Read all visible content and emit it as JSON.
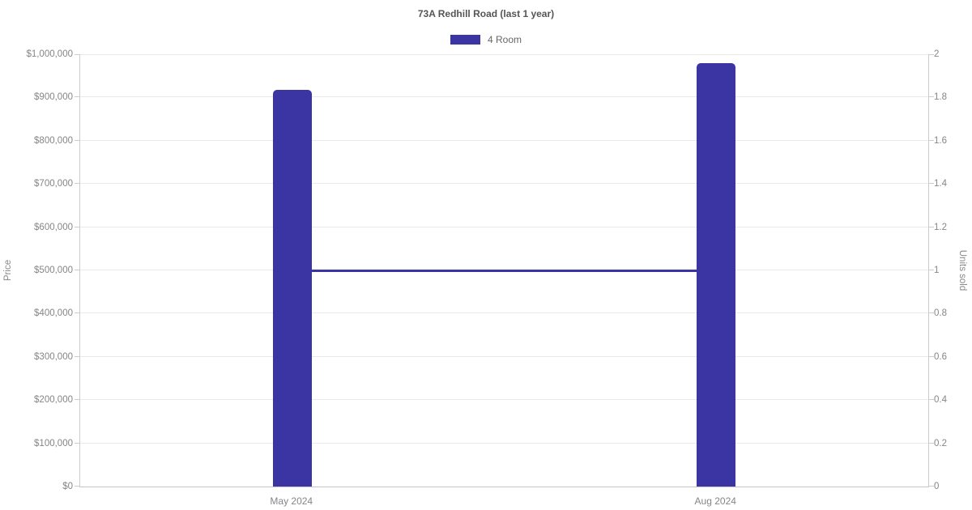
{
  "chart": {
    "title": "73A Redhill Road (last 1 year)",
    "legend": {
      "items": [
        {
          "label": "4 Room",
          "color": "#3b35a3"
        }
      ]
    }
  },
  "chart_data": {
    "type": "bar",
    "title": "73A Redhill Road (last 1 year)",
    "categories": [
      "May 2024",
      "Aug 2024"
    ],
    "series": [
      {
        "name": "4 Room",
        "type": "bar",
        "axis": "left",
        "values": [
          918000,
          980000
        ],
        "color": "#3b35a3"
      },
      {
        "name": "Units sold",
        "type": "line",
        "axis": "right",
        "values": [
          1,
          1
        ],
        "color": "#3b35a3"
      }
    ],
    "left_axis": {
      "title": "Price",
      "min": 0,
      "max": 1000000,
      "step": 100000,
      "ticks": [
        "$0",
        "$100,000",
        "$200,000",
        "$300,000",
        "$400,000",
        "$500,000",
        "$600,000",
        "$700,000",
        "$800,000",
        "$900,000",
        "$1,000,000"
      ]
    },
    "right_axis": {
      "title": "Units sold",
      "min": 0,
      "max": 2,
      "step": 0.2,
      "ticks": [
        "0",
        "0.2",
        "0.4",
        "0.6",
        "0.8",
        "1",
        "1.2",
        "1.4",
        "1.6",
        "1.8",
        "2"
      ]
    },
    "grid": true,
    "legend_position": "top"
  },
  "colors": {
    "accent": "#3b35a3",
    "title_text": "#555555",
    "tick_text": "#85858a",
    "axis_title_text": "#888888",
    "gridline": "#e9e9e9",
    "axis_line": "#cccccc"
  }
}
